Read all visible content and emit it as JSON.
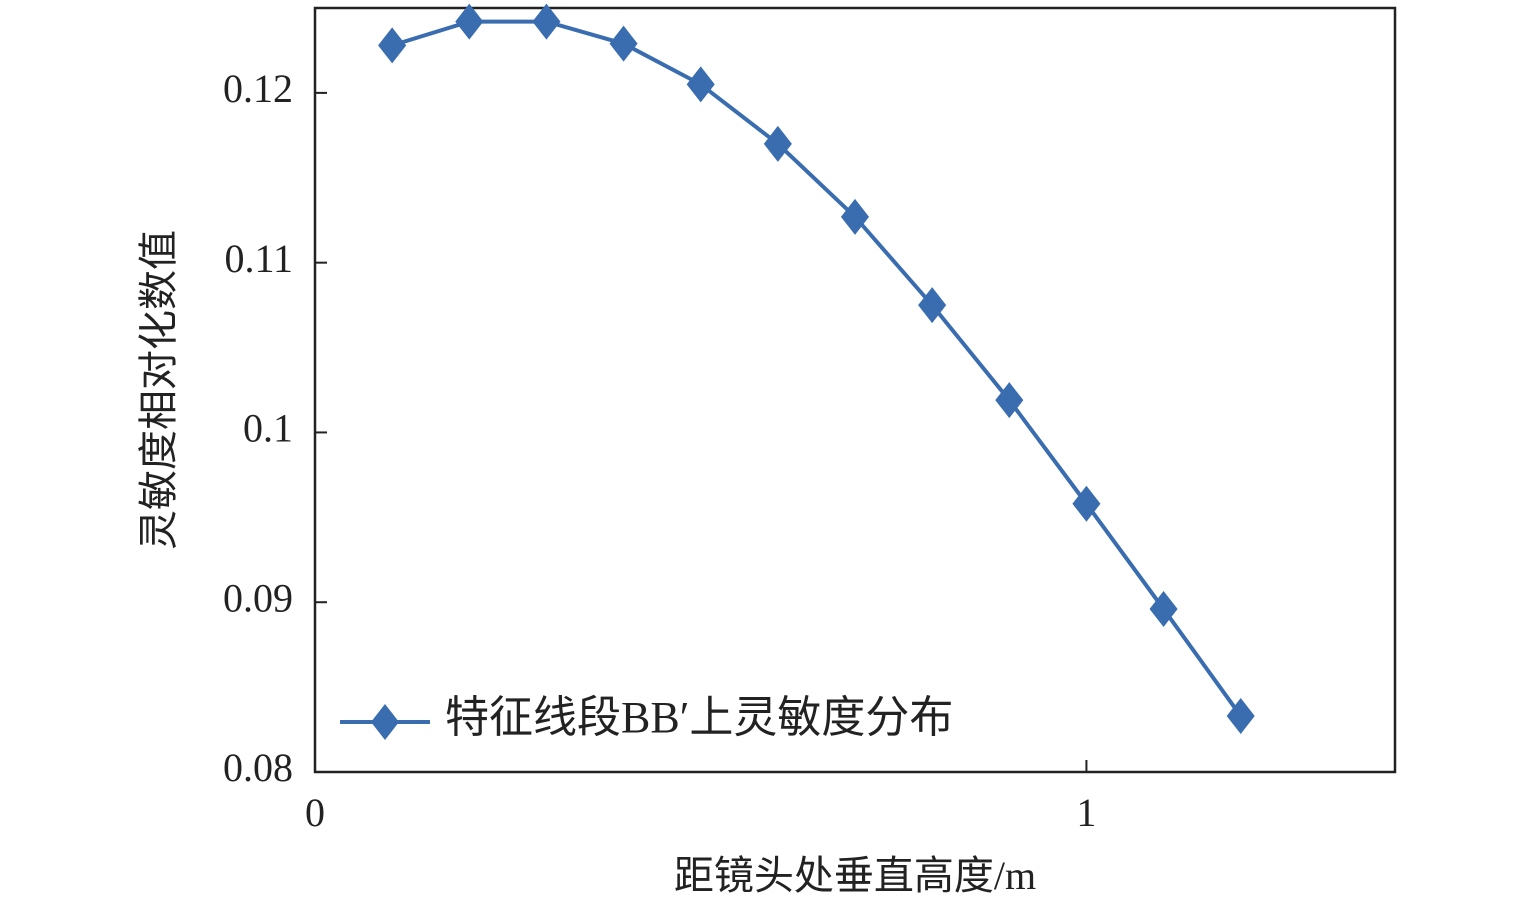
{
  "chart_data": {
    "type": "line",
    "x_label": "距镜头处垂直高度/m",
    "y_label": "灵敏度相对化数值",
    "x": [
      0.1,
      0.2,
      0.3,
      0.4,
      0.5,
      0.6,
      0.7,
      0.8,
      0.9,
      1.0,
      1.1,
      1.2
    ],
    "series": [
      {
        "name": "特征线段BB′上灵敏度分布",
        "color": "#3a6db0",
        "values": [
          0.1228,
          0.1242,
          0.1242,
          0.1229,
          0.1205,
          0.117,
          0.1127,
          0.1075,
          0.1019,
          0.0958,
          0.0896,
          0.0833
        ]
      }
    ],
    "xlim": [
      0,
      1.4
    ],
    "xticks": [
      0,
      1
    ],
    "ylim": [
      0.08,
      0.125
    ],
    "yticks": [
      0.08,
      0.09,
      0.1,
      0.11,
      0.12
    ],
    "legend": "lower left"
  }
}
